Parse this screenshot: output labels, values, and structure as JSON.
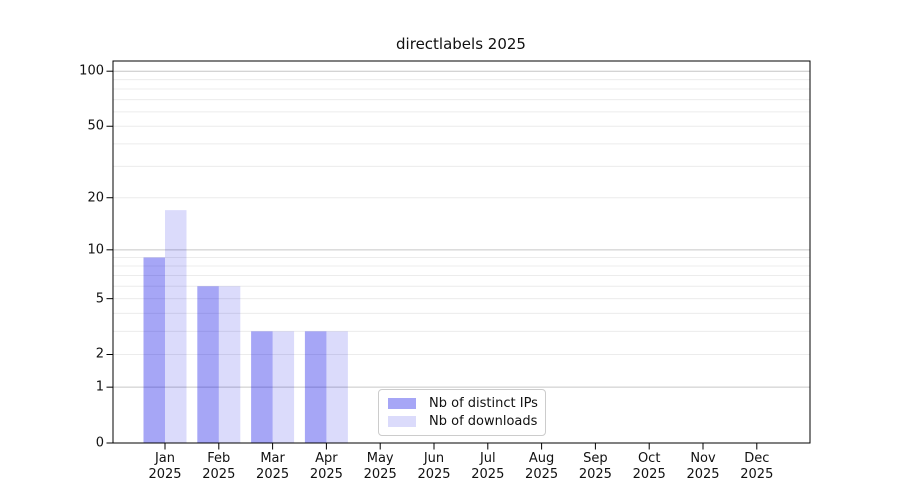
{
  "figure": {
    "background": "#ffffff",
    "text_color": "#111111"
  },
  "chart_data": {
    "type": "bar",
    "title": "directlabels 2025",
    "months": [
      "Jan",
      "Feb",
      "Mar",
      "Apr",
      "May",
      "Jun",
      "Jul",
      "Aug",
      "Sep",
      "Oct",
      "Nov",
      "Dec"
    ],
    "year_label": "2025",
    "categories": [
      "Jan 2025",
      "Feb 2025",
      "Mar 2025",
      "Apr 2025",
      "May 2025",
      "Jun 2025",
      "Jul 2025",
      "Aug 2025",
      "Sep 2025",
      "Oct 2025",
      "Nov 2025",
      "Dec 2025"
    ],
    "series": [
      {
        "name": "Nb of distinct IPs",
        "color": "rgba(0, 0, 230, 0.35)",
        "color_hex": "#a5a5f6",
        "values": [
          9,
          6,
          3,
          3,
          0,
          0,
          0,
          0,
          0,
          0,
          0,
          0
        ]
      },
      {
        "name": "Nb of downloads",
        "color": "rgba(0, 0, 230, 0.14)",
        "color_hex": "#dcdcfb",
        "values": [
          17,
          6,
          3,
          3,
          0,
          0,
          0,
          0,
          0,
          0,
          0,
          0
        ]
      }
    ],
    "xlabel": "",
    "ylabel": "",
    "yscale": "log1p",
    "ylim": [
      0,
      114
    ],
    "yticks": [
      100,
      50,
      20,
      10,
      5,
      2,
      1,
      0
    ],
    "major_gridlines": [
      1,
      10,
      100
    ],
    "minor_gridlines": [
      2,
      3,
      4,
      5,
      6,
      7,
      8,
      9,
      20,
      30,
      40,
      50,
      60,
      70,
      80,
      90
    ],
    "grid": true,
    "legend_position": "lower center",
    "colors": {
      "axis": "#000000",
      "major_grid": "#c6c6c6",
      "minor_grid": "#ececec",
      "legend_border": "#cccccc"
    }
  }
}
